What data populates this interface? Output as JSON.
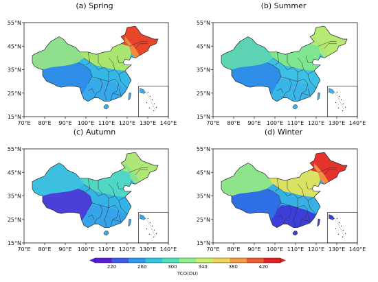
{
  "panels": [
    {
      "id": "spring",
      "title": "(a) Spring"
    },
    {
      "id": "summer",
      "title": "(b) Summer"
    },
    {
      "id": "autumn",
      "title": "(c) Autumn"
    },
    {
      "id": "winter",
      "title": "(d) Winter"
    }
  ],
  "axes": {
    "lon_ticks": [
      "70°E",
      "80°E",
      "90°E",
      "100°E",
      "110°E",
      "120°E",
      "130°E",
      "140°E"
    ],
    "lat_ticks": [
      "55°N",
      "45°N",
      "35°N",
      "25°N",
      "15°N"
    ]
  },
  "colorbar": {
    "label": "TCO(DU)",
    "ticks": [
      "220",
      "260",
      "300",
      "340",
      "380",
      "420"
    ],
    "colors": [
      "#5a19d6",
      "#3c5ae8",
      "#2a97ee",
      "#2fc6e0",
      "#4fe0b7",
      "#8ef08a",
      "#c8ee6c",
      "#efd35a",
      "#f59a45",
      "#ef5a32",
      "#e02020"
    ]
  },
  "palette": {
    "spring": {
      "west": "#8fdf8c",
      "tibet": "#2f8ee8",
      "south": "#38a9ea",
      "center": "#35b8e6",
      "north": "#a9e66f",
      "northeast": "#e8452b",
      "ne_mid": "#f39a44"
    },
    "summer": {
      "west": "#5cd3b3",
      "tibet": "#2f8ee8",
      "south": "#3ab5e8",
      "center": "#3cc0e4",
      "north": "#7fe58e",
      "northeast": "#b6ea74",
      "ne_mid": "#a7e67a"
    },
    "autumn": {
      "west": "#3dbfe0",
      "tibet": "#4a3fd8",
      "south": "#36a4ea",
      "center": "#36b3e6",
      "north": "#4fd6c4",
      "northeast": "#aee778",
      "ne_mid": "#7fe191"
    },
    "winter": {
      "west": "#8ee48a",
      "tibet": "#2f6fe6",
      "south": "#3b3fd8",
      "center": "#37b0e6",
      "north": "#d9e263",
      "northeast": "#e4332a",
      "ne_mid": "#f4a74a"
    }
  }
}
